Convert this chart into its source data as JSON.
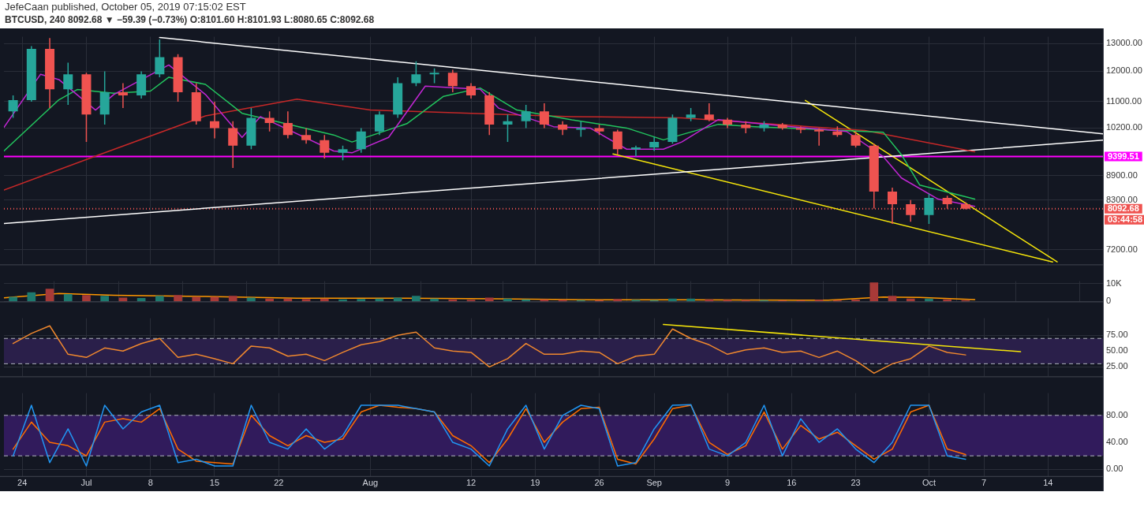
{
  "chart_data": [
    {
      "type": "candlestick",
      "title": "JefeCaan published, October 05, 2019 07:15:02 EST",
      "subtitle": "BTCUSD, 240 8092.68 ▼ −59.39 (−0.73%) O:8101.60 H:8101.93 L:8080.65 C:8092.68",
      "x": [
        "2019-06-23",
        "2019-06-25",
        "2019-06-27",
        "2019-06-29",
        "2019-07-01",
        "2019-07-03",
        "2019-07-05",
        "2019-07-07",
        "2019-07-09",
        "2019-07-11",
        "2019-07-13",
        "2019-07-15",
        "2019-07-17",
        "2019-07-19",
        "2019-07-21",
        "2019-07-23",
        "2019-07-25",
        "2019-07-27",
        "2019-07-29",
        "2019-07-31",
        "2019-08-02",
        "2019-08-04",
        "2019-08-06",
        "2019-08-08",
        "2019-08-10",
        "2019-08-12",
        "2019-08-14",
        "2019-08-16",
        "2019-08-18",
        "2019-08-20",
        "2019-08-22",
        "2019-08-24",
        "2019-08-26",
        "2019-08-28",
        "2019-08-30",
        "2019-09-01",
        "2019-09-03",
        "2019-09-05",
        "2019-09-07",
        "2019-09-09",
        "2019-09-11",
        "2019-09-13",
        "2019-09-15",
        "2019-09-17",
        "2019-09-19",
        "2019-09-21",
        "2019-09-23",
        "2019-09-25",
        "2019-09-27",
        "2019-09-29",
        "2019-10-01",
        "2019-10-03",
        "2019-10-05"
      ],
      "ohlc": [
        [
          10700,
          11200,
          10500,
          11050
        ],
        [
          11050,
          12900,
          11000,
          12800
        ],
        [
          12800,
          13200,
          10800,
          11400
        ],
        [
          11400,
          12300,
          10900,
          11900
        ],
        [
          11900,
          11950,
          9800,
          10600
        ],
        [
          10600,
          12000,
          10300,
          11300
        ],
        [
          11300,
          11600,
          10800,
          11200
        ],
        [
          11200,
          12000,
          11100,
          11900
        ],
        [
          11900,
          13150,
          11800,
          12500
        ],
        [
          12500,
          12600,
          11000,
          11300
        ],
        [
          11300,
          11600,
          10300,
          10400
        ],
        [
          10400,
          11000,
          9900,
          10200
        ],
        [
          10200,
          10400,
          9100,
          9700
        ],
        [
          9700,
          10800,
          9600,
          10500
        ],
        [
          10500,
          10700,
          10100,
          10350
        ],
        [
          10350,
          10700,
          9900,
          10000
        ],
        [
          10000,
          10200,
          9750,
          9850
        ],
        [
          9850,
          10000,
          9350,
          9500
        ],
        [
          9500,
          9700,
          9300,
          9600
        ],
        [
          9600,
          10200,
          9500,
          10100
        ],
        [
          10100,
          10700,
          10000,
          10600
        ],
        [
          10600,
          11800,
          10500,
          11600
        ],
        [
          11600,
          12350,
          11500,
          11900
        ],
        [
          11900,
          12100,
          11600,
          11950
        ],
        [
          11950,
          12050,
          11300,
          11500
        ],
        [
          11500,
          11600,
          11100,
          11200
        ],
        [
          11200,
          11300,
          10000,
          10300
        ],
        [
          10300,
          10600,
          9800,
          10400
        ],
        [
          10400,
          10900,
          10200,
          10700
        ],
        [
          10700,
          10950,
          10200,
          10300
        ],
        [
          10300,
          10400,
          10000,
          10150
        ],
        [
          10150,
          10400,
          9950,
          10200
        ],
        [
          10200,
          10300,
          10000,
          10100
        ],
        [
          10100,
          10150,
          9450,
          9600
        ],
        [
          9600,
          9700,
          9400,
          9650
        ],
        [
          9650,
          9950,
          9550,
          9800
        ],
        [
          9800,
          10600,
          9750,
          10500
        ],
        [
          10500,
          10800,
          10400,
          10600
        ],
        [
          10600,
          10950,
          10400,
          10450
        ],
        [
          10450,
          10500,
          10200,
          10300
        ],
        [
          10300,
          10400,
          10050,
          10200
        ],
        [
          10200,
          10400,
          10100,
          10300
        ],
        [
          10300,
          10350,
          10150,
          10200
        ],
        [
          10200,
          10250,
          10050,
          10150
        ],
        [
          10150,
          10200,
          9700,
          10100
        ],
        [
          10100,
          10250,
          9950,
          10000
        ],
        [
          10000,
          10100,
          9650,
          9700
        ],
        [
          9700,
          9750,
          8100,
          8500
        ],
        [
          8500,
          8600,
          7750,
          8200
        ],
        [
          8200,
          8300,
          7800,
          7950
        ],
        [
          7950,
          8450,
          7750,
          8350
        ],
        [
          8350,
          8400,
          8100,
          8200
        ],
        [
          8200,
          8250,
          8080,
          8093
        ]
      ],
      "colors": [
        "#26a69a",
        "#26a69a",
        "#ef5350",
        "#26a69a",
        "#ef5350",
        "#26a69a",
        "#ef5350",
        "#26a69a",
        "#26a69a",
        "#ef5350",
        "#ef5350",
        "#ef5350",
        "#ef5350",
        "#26a69a",
        "#ef5350",
        "#ef5350",
        "#ef5350",
        "#ef5350",
        "#26a69a",
        "#26a69a",
        "#26a69a",
        "#26a69a",
        "#26a69a",
        "#26a69a",
        "#ef5350",
        "#ef5350",
        "#ef5350",
        "#26a69a",
        "#26a69a",
        "#ef5350",
        "#ef5350",
        "#26a69a",
        "#ef5350",
        "#ef5350",
        "#26a69a",
        "#26a69a",
        "#26a69a",
        "#26a69a",
        "#ef5350",
        "#ef5350",
        "#ef5350",
        "#26a69a",
        "#ef5350",
        "#ef5350",
        "#ef5350",
        "#ef5350",
        "#ef5350",
        "#ef5350",
        "#ef5350",
        "#ef5350",
        "#26a69a",
        "#ef5350",
        "#ef5350"
      ],
      "series": [
        {
          "type": "line",
          "color": "#c026d3",
          "x": [
            "2019-06-22",
            "2019-06-26",
            "2019-06-28",
            "2019-07-02",
            "2019-07-04",
            "2019-07-10",
            "2019-07-14",
            "2019-07-18",
            "2019-07-20",
            "2019-07-28",
            "2019-07-30",
            "2019-08-03",
            "2019-08-07",
            "2019-08-13",
            "2019-08-15",
            "2019-08-21",
            "2019-08-25",
            "2019-08-29",
            "2019-09-02",
            "2019-09-04",
            "2019-09-08",
            "2019-09-16",
            "2019-09-22",
            "2019-09-26",
            "2019-09-28",
            "2019-10-02",
            "2019-10-06"
          ],
          "values": [
            10220,
            11900,
            11720,
            10740,
            11230,
            12220,
            11230,
            9930,
            10540,
            9550,
            9500,
            9930,
            11500,
            11400,
            10800,
            10240,
            10200,
            9600,
            9600,
            9800,
            10450,
            10240,
            10100,
            9400,
            8840,
            8320,
            8150
          ]
        },
        {
          "type": "line",
          "color": "#22c55e",
          "x": [
            "2019-06-22",
            "2019-06-28",
            "2019-06-30",
            "2019-07-04",
            "2019-07-08",
            "2019-07-10",
            "2019-07-14",
            "2019-07-18",
            "2019-07-28",
            "2019-07-30",
            "2019-08-05",
            "2019-08-09",
            "2019-08-13",
            "2019-08-17",
            "2019-08-23",
            "2019-08-29",
            "2019-09-02",
            "2019-09-08",
            "2019-09-12",
            "2019-09-26",
            "2019-09-28",
            "2019-09-30",
            "2019-10-06"
          ],
          "values": [
            9550,
            11060,
            11390,
            11270,
            11340,
            11800,
            11560,
            10640,
            10000,
            9800,
            10330,
            11170,
            11440,
            10740,
            10440,
            10200,
            9860,
            10310,
            10240,
            10080,
            9450,
            8660,
            8320
          ]
        },
        {
          "type": "line",
          "color": "#c62828",
          "x": [
            "2019-06-22",
            "2019-07-02",
            "2019-07-14",
            "2019-07-24",
            "2019-08-01",
            "2019-08-23",
            "2019-09-04",
            "2019-09-24",
            "2019-10-06"
          ],
          "values": [
            8540,
            9410,
            10560,
            11080,
            10740,
            10540,
            10500,
            10130,
            9530
          ]
        },
        {
          "type": "line",
          "color": "#ffffff",
          "x": [
            "2019-07-09",
            "2019-10-20"
          ],
          "values": [
            13220,
            10030
          ]
        },
        {
          "type": "line",
          "color": "#ffffff",
          "x": [
            "2019-06-22",
            "2019-10-20"
          ],
          "values": [
            7760,
            9850
          ]
        },
        {
          "type": "line",
          "color": "#f5e50a",
          "x": [
            "2019-08-27T12:00",
            "2019-10-14T12:00"
          ],
          "values": [
            9470,
            6950
          ]
        },
        {
          "type": "line",
          "color": "#f5e50a",
          "x": [
            "2019-09-17T12:00",
            "2019-10-15"
          ],
          "values": [
            11040,
            6950
          ]
        }
      ],
      "ref_lines": [
        {
          "axis": "y",
          "value": 9399.51,
          "label": "9399.51",
          "color": "#ff00ff",
          "line_style": "solid"
        },
        {
          "axis": "y",
          "value": 8092.68,
          "label": "8092.68",
          "color": "#ef5350",
          "line_style": "dotted"
        }
      ],
      "annotations": [
        "03:44:58"
      ],
      "log": true,
      "xlim": [
        "2019-06-22",
        "2019-10-20"
      ],
      "xticks": [
        {
          "value": "2019-06-24",
          "label": null
        },
        {
          "value": "2019-07-01",
          "label": null
        },
        {
          "value": "2019-07-08",
          "label": null
        },
        {
          "value": "2019-07-15",
          "label": null
        },
        {
          "value": "2019-07-22",
          "label": null
        },
        {
          "value": "2019-08-01",
          "label": null
        },
        {
          "value": "2019-08-12",
          "label": null
        },
        {
          "value": "2019-08-19",
          "label": null
        },
        {
          "value": "2019-08-26",
          "label": null
        },
        {
          "value": "2019-09-01",
          "label": null
        },
        {
          "value": "2019-09-09",
          "label": null
        },
        {
          "value": "2019-09-16",
          "label": null
        },
        {
          "value": "2019-09-23",
          "label": null
        },
        {
          "value": "2019-10-01",
          "label": null
        },
        {
          "value": "2019-10-07",
          "label": null
        },
        {
          "value": "2019-10-14",
          "label": null
        }
      ],
      "ylim": [
        6900,
        13250
      ],
      "yticks": [
        {
          "value": 7200,
          "label": "7200.00"
        },
        {
          "value": 8300,
          "label": "8300.00"
        },
        {
          "value": 8900,
          "label": "8900.00"
        },
        {
          "value": 10200,
          "label": "10200.00"
        },
        {
          "value": 11000,
          "label": "11000.00"
        },
        {
          "value": 12000,
          "label": "12000.00"
        },
        {
          "value": 13000,
          "label": "13000.00"
        }
      ],
      "grid": true,
      "legend": false,
      "tick_labels": "y"
    },
    {
      "type": "bar",
      "x": [
        "2019-06-23",
        "2019-06-25",
        "2019-06-27",
        "2019-06-29",
        "2019-07-01",
        "2019-07-03",
        "2019-07-05",
        "2019-07-07",
        "2019-07-09",
        "2019-07-11",
        "2019-07-13",
        "2019-07-15",
        "2019-07-17",
        "2019-07-19",
        "2019-07-21",
        "2019-07-23",
        "2019-07-25",
        "2019-07-27",
        "2019-07-29",
        "2019-07-31",
        "2019-08-02",
        "2019-08-04",
        "2019-08-06",
        "2019-08-08",
        "2019-08-10",
        "2019-08-12",
        "2019-08-14",
        "2019-08-16",
        "2019-08-18",
        "2019-08-20",
        "2019-08-22",
        "2019-08-24",
        "2019-08-26",
        "2019-08-28",
        "2019-08-30",
        "2019-09-01",
        "2019-09-03",
        "2019-09-05",
        "2019-09-07",
        "2019-09-09",
        "2019-09-11",
        "2019-09-13",
        "2019-09-15",
        "2019-09-17",
        "2019-09-19",
        "2019-09-21",
        "2019-09-23",
        "2019-09-25",
        "2019-09-27",
        "2019-09-29",
        "2019-10-01",
        "2019-10-03",
        "2019-10-05"
      ],
      "series": [
        {
          "type": "bar",
          "colors": [
            "#1e7a6f",
            "#1e7a6f",
            "#a83a38",
            "#1e7a6f",
            "#a83a38",
            "#1e7a6f",
            "#a83a38",
            "#1e7a6f",
            "#1e7a6f",
            "#a83a38",
            "#a83a38",
            "#a83a38",
            "#a83a38",
            "#1e7a6f",
            "#a83a38",
            "#a83a38",
            "#a83a38",
            "#a83a38",
            "#1e7a6f",
            "#1e7a6f",
            "#1e7a6f",
            "#1e7a6f",
            "#1e7a6f",
            "#1e7a6f",
            "#a83a38",
            "#a83a38",
            "#a83a38",
            "#1e7a6f",
            "#1e7a6f",
            "#a83a38",
            "#a83a38",
            "#1e7a6f",
            "#a83a38",
            "#a83a38",
            "#1e7a6f",
            "#1e7a6f",
            "#1e7a6f",
            "#1e7a6f",
            "#a83a38",
            "#a83a38",
            "#a83a38",
            "#1e7a6f",
            "#a83a38",
            "#a83a38",
            "#a83a38",
            "#a83a38",
            "#a83a38",
            "#a83a38",
            "#a83a38",
            "#a83a38",
            "#1e7a6f",
            "#a83a38",
            "#a83a38"
          ],
          "values": [
            2500,
            5000,
            7000,
            4000,
            3500,
            3000,
            2000,
            1800,
            3000,
            3500,
            2500,
            2500,
            3000,
            2000,
            1500,
            1500,
            1200,
            1500,
            1000,
            1200,
            1500,
            2000,
            3000,
            1500,
            1000,
            800,
            2000,
            1500,
            1000,
            1000,
            800,
            600,
            600,
            1200,
            800,
            600,
            1500,
            1500,
            1000,
            800,
            700,
            600,
            500,
            500,
            800,
            600,
            900,
            10500,
            3000,
            1500,
            1500,
            1000,
            600
          ]
        },
        {
          "type": "line",
          "color": "#ff9800",
          "x": [
            "2019-06-22",
            "2019-06-28",
            "2019-07-04",
            "2019-07-14",
            "2019-07-24",
            "2019-08-05",
            "2019-08-15",
            "2019-08-25",
            "2019-09-04",
            "2019-09-20",
            "2019-09-26",
            "2019-09-30",
            "2019-10-06"
          ],
          "values": [
            2000,
            4500,
            3500,
            2800,
            1800,
            1800,
            1500,
            900,
            900,
            700,
            2500,
            2300,
            1100
          ]
        }
      ],
      "xlim": [
        "2019-06-22",
        "2019-10-20"
      ],
      "xticks": [
        {
          "value": "2019-06-24",
          "label": null
        },
        {
          "value": "2019-07-01",
          "label": null
        },
        {
          "value": "2019-07-08",
          "label": null
        },
        {
          "value": "2019-07-15",
          "label": null
        },
        {
          "value": "2019-07-22",
          "label": null
        },
        {
          "value": "2019-08-01",
          "label": null
        },
        {
          "value": "2019-08-12",
          "label": null
        },
        {
          "value": "2019-08-19",
          "label": null
        },
        {
          "value": "2019-08-26",
          "label": null
        },
        {
          "value": "2019-09-01",
          "label": null
        },
        {
          "value": "2019-09-09",
          "label": null
        },
        {
          "value": "2019-09-16",
          "label": null
        },
        {
          "value": "2019-09-23",
          "label": null
        },
        {
          "value": "2019-10-01",
          "label": null
        },
        {
          "value": "2019-10-07",
          "label": null
        },
        {
          "value": "2019-10-14",
          "label": null
        }
      ],
      "ylim": [
        0,
        11400
      ],
      "yticks": [
        0,
        {
          "value": 10000,
          "label": "10K"
        }
      ],
      "grid": true,
      "legend": false,
      "tick_labels": "y"
    },
    {
      "type": "line",
      "x": [
        "2019-06-23",
        "2019-06-25",
        "2019-06-27",
        "2019-06-29",
        "2019-07-01",
        "2019-07-03",
        "2019-07-05",
        "2019-07-07",
        "2019-07-09",
        "2019-07-11",
        "2019-07-13",
        "2019-07-15",
        "2019-07-17",
        "2019-07-19",
        "2019-07-21",
        "2019-07-23",
        "2019-07-25",
        "2019-07-27",
        "2019-07-29",
        "2019-07-31",
        "2019-08-02",
        "2019-08-04",
        "2019-08-06",
        "2019-08-08",
        "2019-08-10",
        "2019-08-12",
        "2019-08-14",
        "2019-08-16",
        "2019-08-18",
        "2019-08-20",
        "2019-08-22",
        "2019-08-24",
        "2019-08-26",
        "2019-08-28",
        "2019-08-30",
        "2019-09-01",
        "2019-09-03",
        "2019-09-05",
        "2019-09-07",
        "2019-09-09",
        "2019-09-11",
        "2019-09-13",
        "2019-09-15",
        "2019-09-17",
        "2019-09-19",
        "2019-09-21",
        "2019-09-23",
        "2019-09-25",
        "2019-09-27",
        "2019-09-29",
        "2019-10-01",
        "2019-10-03",
        "2019-10-05"
      ],
      "series": [
        {
          "type": "line",
          "color": "#f0882e",
          "values": [
            62,
            78,
            90,
            45,
            40,
            55,
            50,
            62,
            70,
            40,
            45,
            38,
            30,
            58,
            55,
            42,
            45,
            35,
            48,
            60,
            65,
            75,
            80,
            55,
            50,
            48,
            25,
            38,
            62,
            45,
            45,
            50,
            48,
            30,
            42,
            45,
            85,
            70,
            60,
            45,
            52,
            55,
            48,
            50,
            40,
            50,
            35,
            15,
            30,
            38,
            58,
            48,
            44
          ]
        },
        {
          "type": "line",
          "color": "#f5e50a",
          "x": [
            "2019-09-02",
            "2019-10-11"
          ],
          "values": [
            92,
            49
          ]
        }
      ],
      "bands": [
        {
          "axis": "y",
          "from": 30,
          "to": 70,
          "color": "#2a1f4a"
        }
      ],
      "ref_lines": [
        {
          "axis": "y",
          "value": 70,
          "color": "#b2b5be",
          "line_style": "dashed"
        },
        {
          "axis": "y",
          "value": 30,
          "color": "#b2b5be",
          "line_style": "dashed"
        }
      ],
      "xlim": [
        "2019-06-22",
        "2019-10-20"
      ],
      "xticks": [
        {
          "value": "2019-06-24",
          "label": null
        },
        {
          "value": "2019-07-01",
          "label": null
        },
        {
          "value": "2019-07-08",
          "label": null
        },
        {
          "value": "2019-07-15",
          "label": null
        },
        {
          "value": "2019-07-22",
          "label": null
        },
        {
          "value": "2019-08-01",
          "label": null
        },
        {
          "value": "2019-08-12",
          "label": null
        },
        {
          "value": "2019-08-19",
          "label": null
        },
        {
          "value": "2019-08-26",
          "label": null
        },
        {
          "value": "2019-09-01",
          "label": null
        },
        {
          "value": "2019-09-09",
          "label": null
        },
        {
          "value": "2019-09-16",
          "label": null
        },
        {
          "value": "2019-09-23",
          "label": null
        },
        {
          "value": "2019-10-01",
          "label": null
        },
        {
          "value": "2019-10-07",
          "label": null
        },
        {
          "value": "2019-10-14",
          "label": null
        }
      ],
      "ylim": [
        10,
        102
      ],
      "yticks": [
        {
          "value": 25,
          "label": "25.00"
        },
        {
          "value": 50,
          "label": "50.00"
        },
        {
          "value": 75,
          "label": "75.00"
        }
      ],
      "grid": true,
      "legend": false,
      "tick_labels": "y"
    },
    {
      "type": "line",
      "x": [
        "2019-06-23",
        "2019-06-25",
        "2019-06-27",
        "2019-06-29",
        "2019-07-01",
        "2019-07-03",
        "2019-07-05",
        "2019-07-07",
        "2019-07-09",
        "2019-07-11",
        "2019-07-13",
        "2019-07-15",
        "2019-07-17",
        "2019-07-19",
        "2019-07-21",
        "2019-07-23",
        "2019-07-25",
        "2019-07-27",
        "2019-07-29",
        "2019-07-31",
        "2019-08-02",
        "2019-08-04",
        "2019-08-06",
        "2019-08-08",
        "2019-08-10",
        "2019-08-12",
        "2019-08-14",
        "2019-08-16",
        "2019-08-18",
        "2019-08-20",
        "2019-08-22",
        "2019-08-24",
        "2019-08-26",
        "2019-08-28",
        "2019-08-30",
        "2019-09-01",
        "2019-09-03",
        "2019-09-05",
        "2019-09-07",
        "2019-09-09",
        "2019-09-11",
        "2019-09-13",
        "2019-09-15",
        "2019-09-17",
        "2019-09-19",
        "2019-09-21",
        "2019-09-23",
        "2019-09-25",
        "2019-09-27",
        "2019-09-29",
        "2019-10-01",
        "2019-10-03",
        "2019-10-05"
      ],
      "series": [
        {
          "type": "line",
          "color": "#2196f3",
          "values": [
            20,
            95,
            10,
            60,
            5,
            95,
            60,
            85,
            95,
            10,
            15,
            5,
            5,
            95,
            40,
            30,
            60,
            30,
            50,
            95,
            95,
            95,
            90,
            85,
            40,
            30,
            5,
            60,
            95,
            30,
            80,
            95,
            90,
            5,
            10,
            60,
            95,
            96,
            30,
            20,
            40,
            95,
            20,
            75,
            40,
            60,
            30,
            10,
            40,
            95,
            95,
            20,
            15
          ]
        },
        {
          "type": "line",
          "color": "#ff6d00",
          "values": [
            30,
            70,
            40,
            35,
            20,
            70,
            75,
            70,
            90,
            30,
            12,
            10,
            8,
            80,
            50,
            35,
            50,
            40,
            45,
            85,
            95,
            92,
            90,
            85,
            50,
            35,
            10,
            45,
            90,
            40,
            70,
            90,
            92,
            15,
            8,
            45,
            90,
            95,
            40,
            22,
            35,
            85,
            30,
            65,
            45,
            55,
            35,
            15,
            30,
            85,
            95,
            30,
            22
          ]
        }
      ],
      "bands": [
        {
          "axis": "y",
          "from": 20,
          "to": 80,
          "color": "#311b5c"
        }
      ],
      "ref_lines": [
        {
          "axis": "y",
          "value": 80,
          "color": "#b2b5be",
          "line_style": "dashed"
        },
        {
          "axis": "y",
          "value": 20,
          "color": "#b2b5be",
          "line_style": "dashed"
        }
      ],
      "xlim": [
        "2019-06-22",
        "2019-10-20"
      ],
      "xticks": [
        {
          "value": "2019-06-24",
          "label": "24"
        },
        {
          "value": "2019-07-01",
          "label": "Jul"
        },
        {
          "value": "2019-07-08",
          "label": "8"
        },
        {
          "value": "2019-07-15",
          "label": "15"
        },
        {
          "value": "2019-07-22",
          "label": "22"
        },
        {
          "value": "2019-08-01",
          "label": "Aug"
        },
        {
          "value": "2019-08-12",
          "label": "12"
        },
        {
          "value": "2019-08-19",
          "label": "19"
        },
        {
          "value": "2019-08-26",
          "label": "26"
        },
        {
          "value": "2019-09-01",
          "label": "Sep"
        },
        {
          "value": "2019-09-09",
          "label": "9"
        },
        {
          "value": "2019-09-16",
          "label": "16"
        },
        {
          "value": "2019-09-23",
          "label": "23"
        },
        {
          "value": "2019-10-01",
          "label": "Oct"
        },
        {
          "value": "2019-10-07",
          "label": "7"
        },
        {
          "value": "2019-10-14",
          "label": "14"
        }
      ],
      "ylim": [
        -10,
        113
      ],
      "yticks": [
        {
          "value": 0,
          "label": "0.00"
        },
        {
          "value": 40,
          "label": "40.00"
        },
        {
          "value": 80,
          "label": "80.00"
        }
      ],
      "grid": true,
      "legend": false
    }
  ]
}
